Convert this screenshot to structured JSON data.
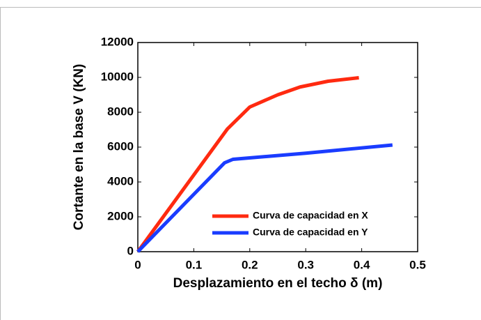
{
  "chart_data": {
    "type": "line",
    "xlabel": "Desplazamiento en el techo δ (m)",
    "ylabel": "Cortante en la base V (KN)",
    "series": [
      {
        "name": "Curva de capacidad en X",
        "color": "#ff2a10",
        "x": [
          0,
          0.16,
          0.2,
          0.25,
          0.29,
          0.34,
          0.395
        ],
        "values": [
          0,
          7040,
          8300,
          9000,
          9450,
          9780,
          9980
        ]
      },
      {
        "name": "Curva de capacidad en Y",
        "color": "#1a3cff",
        "x": [
          0,
          0.155,
          0.17,
          0.3,
          0.455
        ],
        "values": [
          0,
          5100,
          5300,
          5650,
          6120
        ]
      }
    ],
    "xlim": [
      0,
      0.5
    ],
    "xticks": [
      0,
      0.1,
      0.2,
      0.3,
      0.4,
      0.5
    ],
    "ylim": [
      0,
      12000
    ],
    "yticks": [
      0,
      2000,
      4000,
      6000,
      8000,
      10000,
      12000
    ],
    "legend": "lower right"
  }
}
